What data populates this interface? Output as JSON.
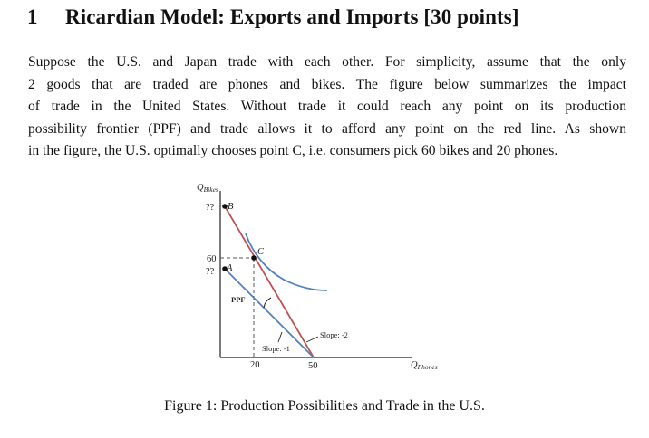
{
  "section": {
    "number": "1",
    "title": "Ricardian Model: Exports and Imports [30 points]"
  },
  "paragraph": {
    "lines": [
      "Suppose the U.S. and Japan trade with each other.  For simplicity, assume that the only",
      "2 goods that are traded are phones and bikes.  The figure below summarizes the impact",
      "of trade in the United States.  Without trade it could reach any point on its production",
      "possibility frontier (PPF) and trade allows it to afford any point on the red line. As shown",
      "in the figure, the U.S. optimally chooses point C, i.e. consumers pick 60 bikes and 20 phones."
    ]
  },
  "figure": {
    "y_axis_label": {
      "base": "Q",
      "sub": "Bikes"
    },
    "x_axis_label": {
      "base": "Q",
      "sub": "Phones"
    },
    "y_ticks": [
      "??",
      "60",
      "??"
    ],
    "x_ticks": [
      "20",
      "50"
    ],
    "point_labels": {
      "B": "B",
      "C": "C",
      "A": "A"
    },
    "ppf_label": "PPF",
    "slope_trade_label": "Slope: -2",
    "slope_ppf_label": "Slope: -1",
    "colors": {
      "trade_line": "#c0504d",
      "ppf_line": "#4f81bd",
      "indifference_curve": "#4f81bd",
      "axes": "#222222",
      "guide": "#555555"
    }
  },
  "caption": "Figure 1: Production Possibilities and Trade in the U.S."
}
